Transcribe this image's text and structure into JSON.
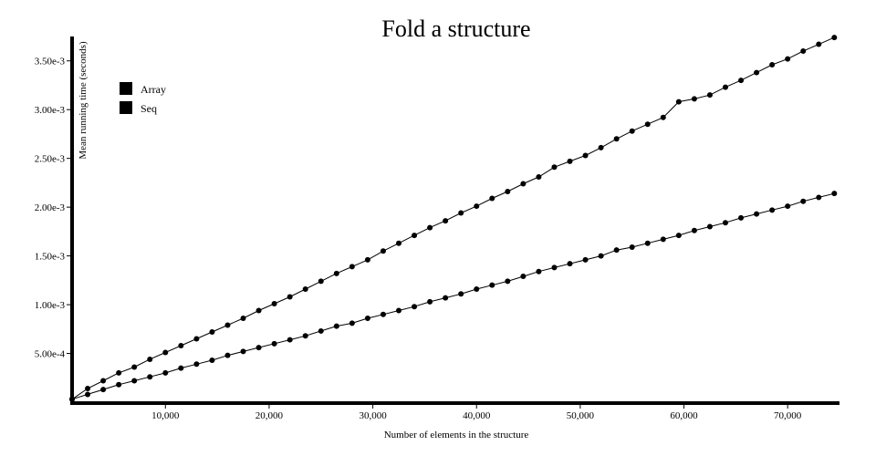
{
  "chart_data": {
    "type": "line",
    "title": "Fold a structure",
    "xlabel": "Number of elements in the structure",
    "ylabel": "Mean running time (seconds)",
    "xlim": [
      1000,
      75000
    ],
    "ylim": [
      0,
      0.00375
    ],
    "x_ticks": [
      {
        "value": 10000,
        "label": "10,000"
      },
      {
        "value": 20000,
        "label": "20,000"
      },
      {
        "value": 30000,
        "label": "30,000"
      },
      {
        "value": 40000,
        "label": "40,000"
      },
      {
        "value": 50000,
        "label": "50,000"
      },
      {
        "value": 60000,
        "label": "60,000"
      },
      {
        "value": 70000,
        "label": "70,000"
      }
    ],
    "y_ticks": [
      {
        "value": 0.0005,
        "label": "5.00e-4"
      },
      {
        "value": 0.001,
        "label": "1.00e-3"
      },
      {
        "value": 0.0015,
        "label": "1.50e-3"
      },
      {
        "value": 0.002,
        "label": "2.00e-3"
      },
      {
        "value": 0.0025,
        "label": "2.50e-3"
      },
      {
        "value": 0.003,
        "label": "3.00e-3"
      },
      {
        "value": 0.0035,
        "label": "3.50e-3"
      }
    ],
    "legend": {
      "placement": "top-left"
    },
    "series": [
      {
        "name": "Array",
        "color": "#000000",
        "x": [
          1000,
          2500,
          4000,
          5500,
          7000,
          8500,
          10000,
          11500,
          13000,
          14500,
          16000,
          17500,
          19000,
          20500,
          22000,
          23500,
          25000,
          26500,
          28000,
          29500,
          31000,
          32500,
          34000,
          35500,
          37000,
          38500,
          40000,
          41500,
          43000,
          44500,
          46000,
          47500,
          49000,
          50500,
          52000,
          53500,
          55000,
          56500,
          58000,
          59500,
          61000,
          62500,
          64000,
          65500,
          67000,
          68500,
          70000,
          71500,
          73000,
          74500
        ],
        "y": [
          3e-05,
          0.00014,
          0.00022,
          0.0003,
          0.00036,
          0.00044,
          0.00051,
          0.00058,
          0.00065,
          0.00072,
          0.00079,
          0.00086,
          0.00094,
          0.00101,
          0.00108,
          0.00116,
          0.00124,
          0.00132,
          0.00139,
          0.00146,
          0.00155,
          0.00163,
          0.00171,
          0.00179,
          0.00186,
          0.00194,
          0.00201,
          0.00209,
          0.00216,
          0.00224,
          0.00231,
          0.00241,
          0.00247,
          0.00253,
          0.00261,
          0.0027,
          0.00278,
          0.00285,
          0.00292,
          0.00308,
          0.00311,
          0.00315,
          0.00323,
          0.0033,
          0.00338,
          0.00346,
          0.00352,
          0.0036,
          0.00367,
          0.00374
        ]
      },
      {
        "name": "Seq",
        "color": "#000000",
        "x": [
          1000,
          2500,
          4000,
          5500,
          7000,
          8500,
          10000,
          11500,
          13000,
          14500,
          16000,
          17500,
          19000,
          20500,
          22000,
          23500,
          25000,
          26500,
          28000,
          29500,
          31000,
          32500,
          34000,
          35500,
          37000,
          38500,
          40000,
          41500,
          43000,
          44500,
          46000,
          47500,
          49000,
          50500,
          52000,
          53500,
          55000,
          56500,
          58000,
          59500,
          61000,
          62500,
          64000,
          65500,
          67000,
          68500,
          70000,
          71500,
          73000,
          74500
        ],
        "y": [
          3e-05,
          8e-05,
          0.00013,
          0.00018,
          0.00022,
          0.00026,
          0.0003,
          0.00035,
          0.00039,
          0.00043,
          0.00048,
          0.00052,
          0.00056,
          0.0006,
          0.00064,
          0.00068,
          0.00073,
          0.00078,
          0.00081,
          0.00086,
          0.0009,
          0.00094,
          0.00098,
          0.00103,
          0.00107,
          0.00111,
          0.00116,
          0.0012,
          0.00124,
          0.00129,
          0.00134,
          0.00138,
          0.00142,
          0.00146,
          0.0015,
          0.00156,
          0.00159,
          0.00163,
          0.00167,
          0.00171,
          0.00176,
          0.0018,
          0.00184,
          0.00189,
          0.00193,
          0.00197,
          0.00201,
          0.00206,
          0.0021,
          0.00214
        ]
      }
    ]
  }
}
